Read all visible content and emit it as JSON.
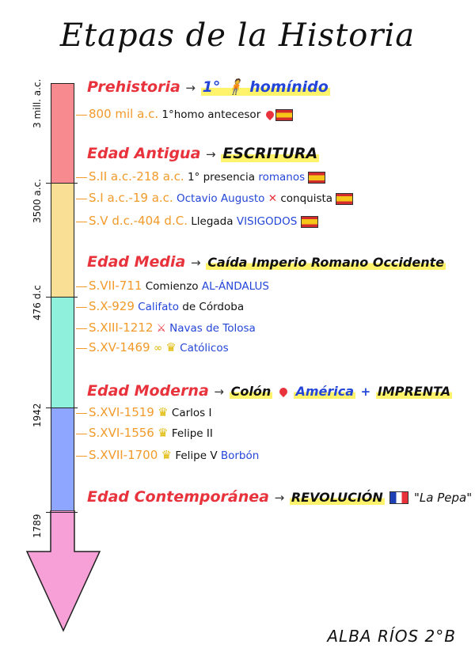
{
  "title": "Etapas de la Historia",
  "timeline": {
    "colors": [
      "#f68a8f",
      "#f9df96",
      "#8ff0dc",
      "#8ea6ff",
      "#f79fd7"
    ],
    "labels": [
      "3 mill. a.c.",
      "3500 a.c.",
      "476 d.c",
      "1942",
      "1789"
    ]
  },
  "eras": [
    {
      "name": "Prehistoria",
      "arrow": "→",
      "highlight": "1° 🧍 homínido",
      "events": [
        {
          "date": "800 mil a.c.",
          "text": "1°homo antecesor"
        }
      ]
    },
    {
      "name": "Edad Antigua",
      "arrow": "→",
      "highlight": "ESCRITURA",
      "events": [
        {
          "date": "S.II a.c.-218 a.c.",
          "text": "1° presencia",
          "blue": "romanos"
        },
        {
          "date": "S.I a.c.-19 a.c.",
          "blue": "Octavio Augusto",
          "text": "conquista"
        },
        {
          "date": "S.V d.c.-404 d.C.",
          "text": "Llegada",
          "blue": "VISIGODOS"
        }
      ]
    },
    {
      "name": "Edad Media",
      "arrow": "→",
      "highlight": "Caída Imperio Romano Occidente",
      "events": [
        {
          "date": "S.VII-711",
          "text": "Comienzo",
          "blue": "AL-ÁNDALUS"
        },
        {
          "date": "S.X-929",
          "blue": "Califato",
          "text": "de Córdoba"
        },
        {
          "date": "S.XIII-1212",
          "blue": "Navas de Tolosa"
        },
        {
          "date": "S.XV-1469",
          "blue": "Católicos"
        }
      ]
    },
    {
      "name": "Edad Moderna",
      "arrow": "→",
      "highlight": "Colón",
      "blue": "América",
      "plus": "+",
      "highlight2": "IMPRENTA",
      "events": [
        {
          "date": "S.XVI-1519",
          "text": "Carlos I"
        },
        {
          "date": "S.XVI-1556",
          "text": "Felipe II"
        },
        {
          "date": "S.XVII-1700",
          "text": "Felipe V",
          "blue": "Borbón"
        }
      ]
    },
    {
      "name": "Edad Contemporánea",
      "arrow": "→",
      "highlight": "REVOLUCIÓN",
      "quote": "\"La Pepa\""
    }
  ],
  "signature": "ALBA RÍOS 2°B"
}
